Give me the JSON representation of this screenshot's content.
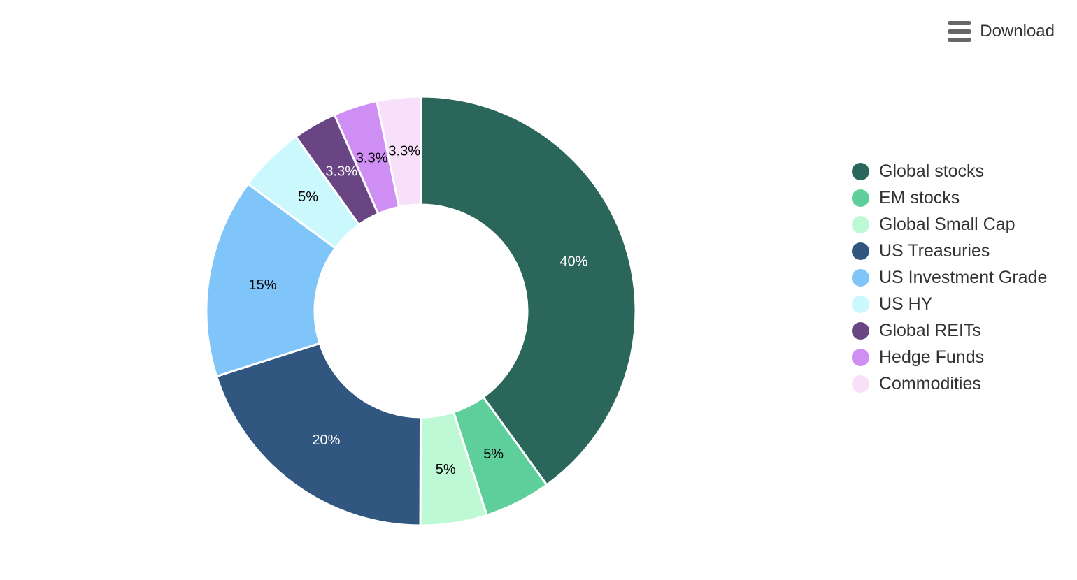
{
  "toolbar": {
    "download_label": "Download",
    "icon": "hamburger-menu-icon"
  },
  "chart_data": {
    "type": "pie",
    "variant": "donut",
    "title": "",
    "categories": [
      "Global stocks",
      "EM stocks",
      "Global Small Cap",
      "US Treasuries",
      "US Investment Grade",
      "US HY",
      "Global REITs",
      "Hedge Funds",
      "Commodities"
    ],
    "values": [
      40,
      5,
      5,
      20,
      15,
      5,
      3.3,
      3.3,
      3.3
    ],
    "labels": [
      "40%",
      "5%",
      "5%",
      "20%",
      "15%",
      "5%",
      "3.3%",
      "3.3%",
      "3.3%"
    ],
    "colors": [
      "#2a6659",
      "#5ecf9b",
      "#bef9d5",
      "#31567f",
      "#80c5fa",
      "#cbf8fd",
      "#6a4584",
      "#cf8ef3",
      "#f8e0fa"
    ],
    "label_colors": [
      "#ffffff",
      "#000000",
      "#000000",
      "#ffffff",
      "#000000",
      "#000000",
      "#ffffff",
      "#000000",
      "#000000"
    ],
    "legend_position": "right"
  }
}
